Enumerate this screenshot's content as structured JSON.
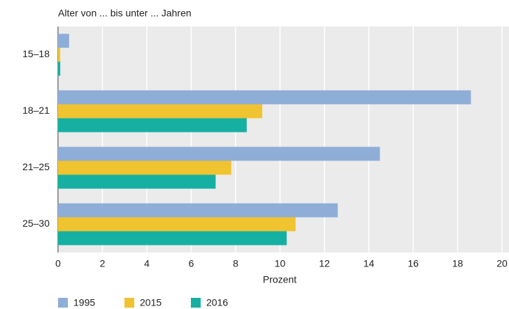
{
  "chart_data": {
    "type": "bar",
    "orientation": "horizontal",
    "y_label": "Alter von ... bis unter ... Jahren",
    "x_label": "Prozent",
    "categories": [
      "15–18",
      "18–21",
      "21–25",
      "25–30"
    ],
    "series": [
      {
        "name": "1995",
        "color": "#8eaed8",
        "values": [
          0.5,
          18.6,
          14.5,
          12.6
        ]
      },
      {
        "name": "2015",
        "color": "#f0c330",
        "values": [
          0.1,
          9.2,
          7.8,
          10.7
        ]
      },
      {
        "name": "2016",
        "color": "#16b0a3",
        "values": [
          0.1,
          8.5,
          7.1,
          10.3
        ]
      }
    ],
    "xlim": [
      0,
      20
    ],
    "xticks": [
      0,
      2,
      4,
      6,
      8,
      10,
      12,
      14,
      16,
      18,
      20
    ],
    "grid": true
  }
}
